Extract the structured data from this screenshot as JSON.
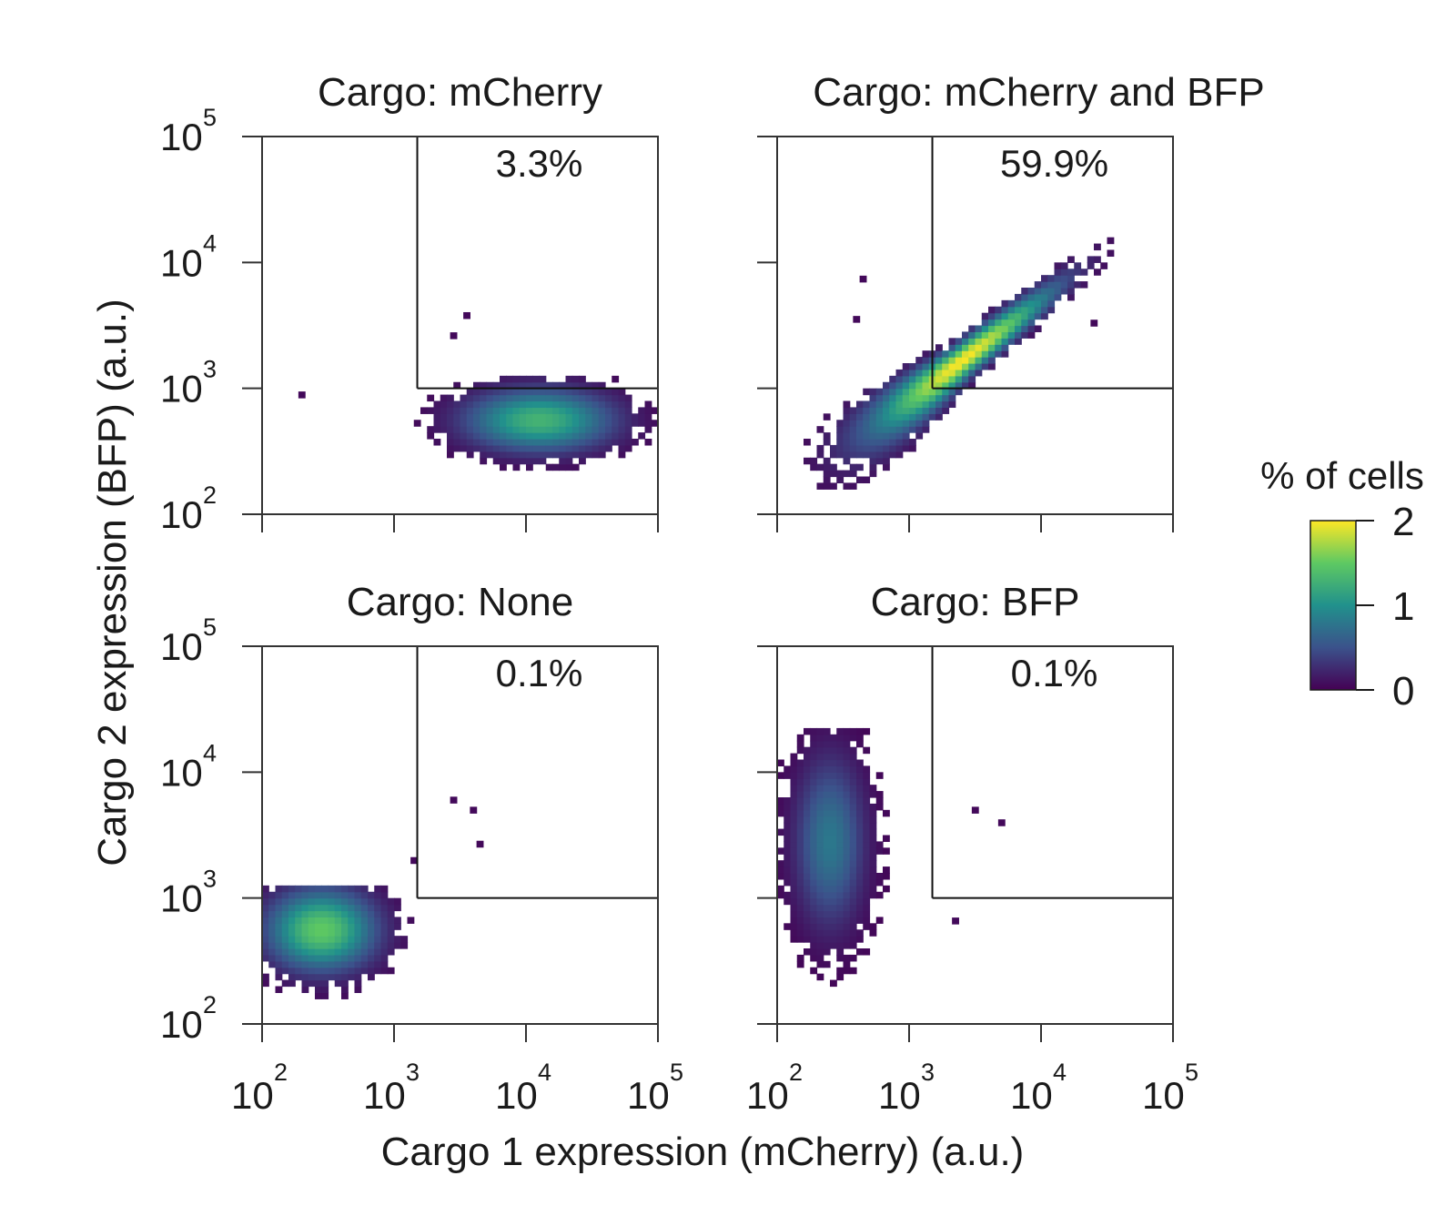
{
  "chart_data": {
    "type": "heatmap",
    "xlabel": "Cargo 1 expression (mCherry) (a.u.)",
    "ylabel": "Cargo 2 expression (BFP) (a.u.)",
    "x_scale": "log",
    "y_scale": "log",
    "xlim": [
      100,
      100000
    ],
    "ylim": [
      100,
      100000
    ],
    "tick_values": [
      100,
      1000,
      10000,
      100000
    ],
    "tick_labels": [
      {
        "base": "10",
        "exp": "2"
      },
      {
        "base": "10",
        "exp": "3"
      },
      {
        "base": "10",
        "exp": "4"
      },
      {
        "base": "10",
        "exp": "5"
      }
    ],
    "gate": {
      "x_min": 1500,
      "y_min": 1000
    },
    "colorbar": {
      "title": "% of cells",
      "ticks": [
        "0",
        "1",
        "2"
      ],
      "range": [
        0,
        2
      ],
      "colormap": "viridis",
      "colors": [
        "#440154",
        "#3b528b",
        "#21918c",
        "#5ec962",
        "#fde725"
      ]
    },
    "panels": [
      {
        "title": "Cargo: mCherry",
        "gate_percent": "3.3%",
        "density_center_log10": [
          4.1,
          2.75
        ],
        "density_spread_log10": [
          0.38,
          0.17
        ],
        "density_tilt": 0.0,
        "peak_percent": 1.3,
        "bin_bounds_log10": {
          "x": [
            2.0,
            5.0
          ],
          "y": [
            2.0,
            3.1
          ]
        },
        "outlier_points_log10": [
          [
            3.55,
            3.58
          ],
          [
            3.45,
            3.42
          ],
          [
            2.3,
            2.95
          ]
        ]
      },
      {
        "title": "Cargo: mCherry and BFP",
        "gate_percent": "59.9%",
        "density_center_log10": [
          3.4,
          3.22
        ],
        "density_spread_log10": [
          0.6,
          0.05
        ],
        "density_tilt": 0.82,
        "peak_percent": 2.0,
        "bin_bounds_log10": {
          "x": [
            2.0,
            4.6
          ],
          "y": [
            2.1,
            4.45
          ]
        },
        "outlier_points_log10": [
          [
            2.65,
            3.87
          ],
          [
            4.4,
            3.52
          ],
          [
            2.6,
            3.55
          ]
        ]
      },
      {
        "title": "Cargo: None",
        "gate_percent": "0.1%",
        "density_center_log10": [
          2.45,
          2.75
        ],
        "density_spread_log10": [
          0.28,
          0.22
        ],
        "density_tilt": 0.0,
        "peak_percent": 1.5,
        "bin_bounds_log10": {
          "x": [
            2.0,
            3.25
          ],
          "y": [
            2.0,
            3.1
          ]
        },
        "outlier_points_log10": [
          [
            3.45,
            3.78
          ],
          [
            3.6,
            3.7
          ],
          [
            3.65,
            3.43
          ],
          [
            3.15,
            3.3
          ]
        ]
      },
      {
        "title": "Cargo: BFP",
        "gate_percent": "0.1%",
        "density_center_log10": [
          2.4,
          3.45
        ],
        "density_spread_log10": [
          0.18,
          0.45
        ],
        "density_tilt": 0.0,
        "peak_percent": 0.8,
        "bin_bounds_log10": {
          "x": [
            2.0,
            3.2
          ],
          "y": [
            2.3,
            4.35
          ]
        },
        "outlier_points_log10": [
          [
            3.5,
            3.7
          ],
          [
            3.7,
            3.6
          ],
          [
            3.35,
            2.82
          ]
        ]
      }
    ]
  }
}
